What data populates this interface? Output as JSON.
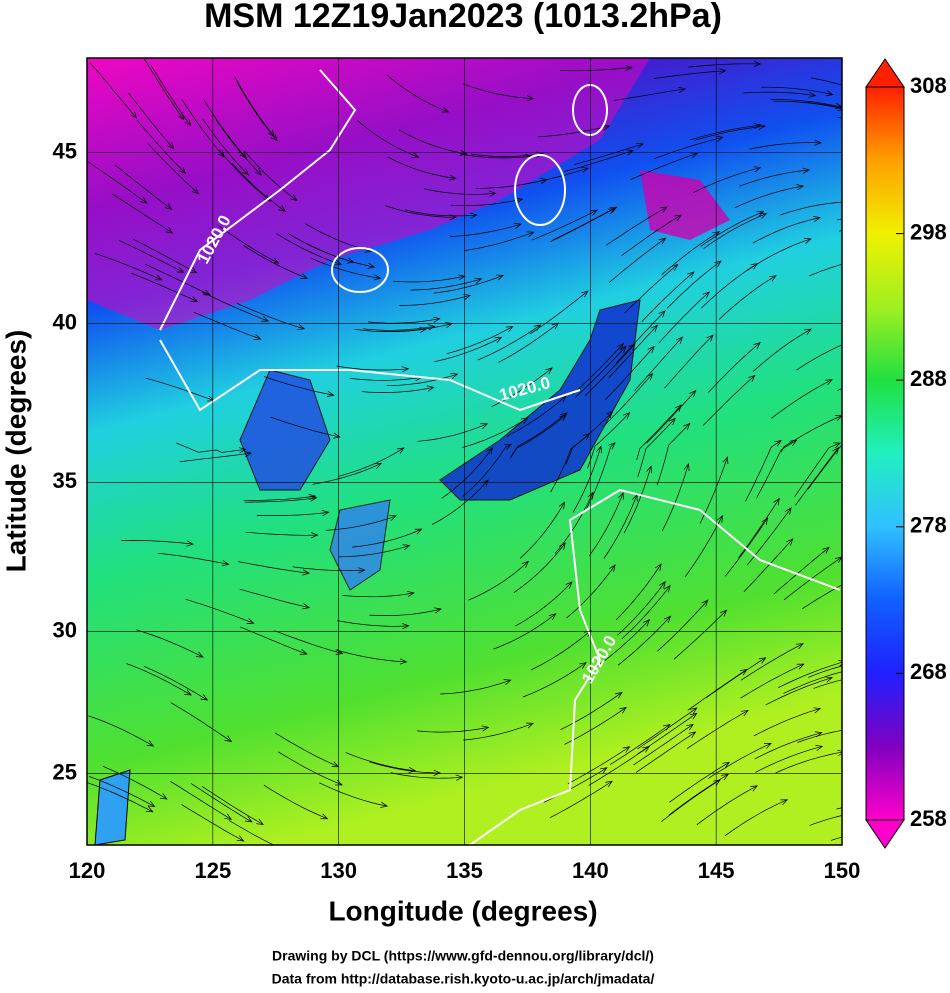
{
  "chart_data": {
    "type": "map",
    "title": "MSM 12Z19Jan2023 (1013.2hPa)",
    "x_label": "Longitude (degrees)",
    "y_label": "Latitude  (degrees)",
    "xlim": [
      120,
      150
    ],
    "xticks": [
      120,
      125,
      130,
      135,
      140,
      145,
      150
    ],
    "ylim": [
      22.4,
      47.6
    ],
    "yticks": [
      25,
      30,
      35,
      40,
      45
    ],
    "projection": "mercator",
    "grid": true,
    "contour_labels": [
      "1020.0",
      "1020.0",
      "1020.0"
    ],
    "colorbar": {
      "lim": [
        258,
        308
      ],
      "ticks": [
        258,
        268,
        278,
        288,
        298,
        308
      ],
      "colors": [
        "#ff00cc",
        "#8000c0",
        "#2020ff",
        "#1060ff",
        "#30c0ff",
        "#20f0c0",
        "#20e040",
        "#a0f020",
        "#f0f000",
        "#ffa000",
        "#ff2000"
      ]
    },
    "credits": [
      "Drawing by DCL (https://www.gfd-dennou.org/library/dcl/)",
      "Data from http://database.rish.kyoto-u.ac.jp/arch/jmadata/"
    ]
  }
}
